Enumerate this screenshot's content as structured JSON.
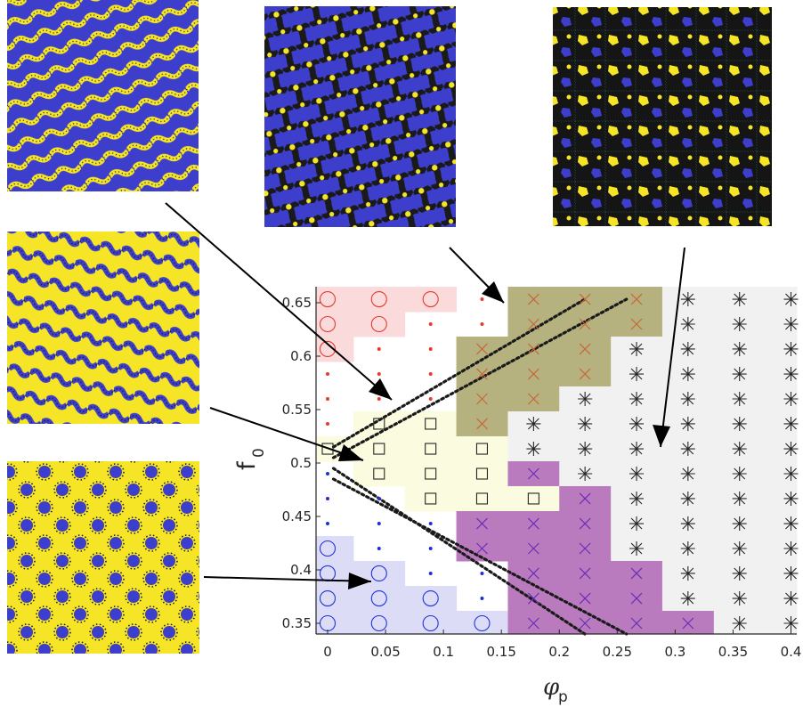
{
  "chart_data": {
    "type": "scatter",
    "title": "",
    "xlabel": "φ",
    "xlabel_sub": "p",
    "ylabel": "f",
    "ylabel_sub": "0",
    "xlim": [
      -0.01,
      0.405
    ],
    "ylim": [
      0.34,
      0.665
    ],
    "x_ticks": [
      0,
      0.05,
      0.1,
      0.15,
      0.2,
      0.25,
      0.3,
      0.35,
      0.4
    ],
    "x_tick_labels": [
      "0",
      "0.05",
      "0.1",
      "0.15",
      "0.2",
      "0.25",
      "0.3",
      "0.35",
      "0.4"
    ],
    "y_ticks": [
      0.35,
      0.4,
      0.45,
      0.5,
      0.55,
      0.6,
      0.65
    ],
    "y_tick_labels": [
      "0.35",
      "0.4",
      "0.45",
      "0.5",
      "0.55",
      "0.6",
      "0.65"
    ],
    "grid": false,
    "x_grid": [
      0,
      0.0444,
      0.0889,
      0.1333,
      0.1778,
      0.2222,
      0.2667,
      0.3111,
      0.3556,
      0.4
    ],
    "y_grid": [
      0.35,
      0.3733,
      0.3967,
      0.42,
      0.4433,
      0.4667,
      0.49,
      0.5133,
      0.5367,
      0.56,
      0.5833,
      0.6067,
      0.63,
      0.6533
    ],
    "colors": {
      "circle-red": "#e8392f",
      "dot-red": "#e8392f",
      "square": "#262626",
      "dot-blue": "#1f2fd6",
      "circle-blue": "#2233dd",
      "x-orange": "#c8663a",
      "x-purple": "#6a2db8",
      "star": "#262626",
      "region-red": "#fadadb",
      "region-yellow": "#fbfbdf",
      "region-blue": "#dcdcf6",
      "region-olive": "#b5b27f",
      "region-purple": "#b97bbe",
      "region-gray": "#f1f1f1",
      "dotted-line": "#1a1a1a"
    },
    "symbol_rows": [
      {
        "f0": 0.6533,
        "symbols": [
          "circle-red",
          "circle-red",
          "circle-red",
          "dot-red",
          "x-orange",
          "x-orange",
          "x-orange",
          "star",
          "star",
          "star"
        ]
      },
      {
        "f0": 0.63,
        "symbols": [
          "circle-red",
          "circle-red",
          "dot-red",
          "dot-red",
          "x-orange",
          "x-orange",
          "x-orange",
          "star",
          "star",
          "star"
        ]
      },
      {
        "f0": 0.6067,
        "symbols": [
          "circle-red",
          "dot-red",
          "dot-red",
          "x-orange",
          "x-orange",
          "x-orange",
          "star",
          "star",
          "star",
          "star"
        ]
      },
      {
        "f0": 0.5833,
        "symbols": [
          "dot-red",
          "dot-red",
          "dot-red",
          "x-orange",
          "x-orange",
          "x-orange",
          "star",
          "star",
          "star",
          "star"
        ]
      },
      {
        "f0": 0.56,
        "symbols": [
          "dot-red",
          "dot-red",
          "dot-red",
          "x-orange",
          "x-orange",
          "star",
          "star",
          "star",
          "star",
          "star"
        ]
      },
      {
        "f0": 0.5367,
        "symbols": [
          "dot-red",
          "square",
          "square",
          "x-orange",
          "star",
          "star",
          "star",
          "star",
          "star",
          "star"
        ]
      },
      {
        "f0": 0.5133,
        "symbols": [
          "square",
          "square",
          "square",
          "square",
          "star",
          "star",
          "star",
          "star",
          "star",
          "star"
        ]
      },
      {
        "f0": 0.49,
        "symbols": [
          "dot-blue",
          "square",
          "square",
          "square",
          "x-purple",
          "star",
          "star",
          "star",
          "star",
          "star"
        ]
      },
      {
        "f0": 0.4667,
        "symbols": [
          "dot-blue",
          "dot-blue",
          "square",
          "square",
          "square",
          "x-purple",
          "star",
          "star",
          "star",
          "star"
        ]
      },
      {
        "f0": 0.4433,
        "symbols": [
          "dot-blue",
          "dot-blue",
          "dot-blue",
          "x-purple",
          "x-purple",
          "x-purple",
          "star",
          "star",
          "star",
          "star"
        ]
      },
      {
        "f0": 0.42,
        "symbols": [
          "circle-blue",
          "dot-blue",
          "dot-blue",
          "x-purple",
          "x-purple",
          "x-purple",
          "star",
          "star",
          "star",
          "star"
        ]
      },
      {
        "f0": 0.3967,
        "symbols": [
          "circle-blue",
          "circle-blue",
          "dot-blue",
          "dot-blue",
          "x-purple",
          "x-purple",
          "x-purple",
          "star",
          "star",
          "star"
        ]
      },
      {
        "f0": 0.3733,
        "symbols": [
          "circle-blue",
          "circle-blue",
          "circle-blue",
          "dot-blue",
          "x-purple",
          "x-purple",
          "x-purple",
          "star",
          "star",
          "star"
        ]
      },
      {
        "f0": 0.35,
        "symbols": [
          "circle-blue",
          "circle-blue",
          "circle-blue",
          "circle-blue",
          "x-purple",
          "x-purple",
          "x-purple",
          "x-purple",
          "star",
          "star"
        ]
      }
    ],
    "dotted_lines": [
      {
        "from": [
          0.005,
          0.515
        ],
        "to": [
          0.222,
          0.6533
        ]
      },
      {
        "from": [
          0.005,
          0.505
        ],
        "to": [
          0.258,
          0.6533
        ]
      },
      {
        "from": [
          0.005,
          0.495
        ],
        "to": [
          0.222,
          0.34
        ]
      },
      {
        "from": [
          0.005,
          0.485
        ],
        "to": [
          0.258,
          0.34
        ]
      }
    ]
  }
}
